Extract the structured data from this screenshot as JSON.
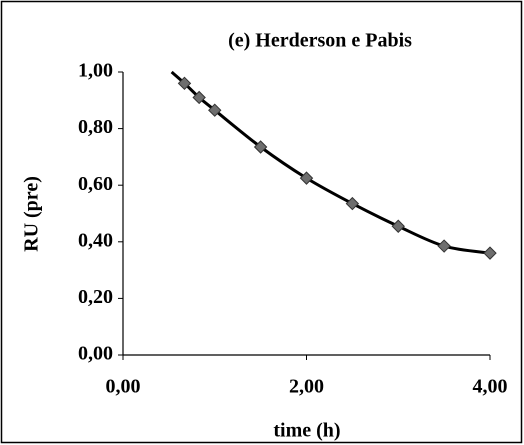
{
  "chart_data": {
    "type": "line",
    "title": "(e) Herderson e Pabis",
    "xlabel": "time (h)",
    "ylabel": "RU (pre)",
    "series": [
      {
        "style": "curve",
        "color": "#000000",
        "x": [
          0.53,
          0.67,
          0.83,
          1.0,
          1.5,
          2.0,
          2.5,
          3.0,
          3.5,
          4.0
        ],
        "values": [
          1.0,
          0.96,
          0.91,
          0.865,
          0.735,
          0.625,
          0.535,
          0.455,
          0.385,
          0.36
        ]
      },
      {
        "style": "diamond",
        "color": "#6e6e6e",
        "x": [
          0.67,
          0.83,
          1.0,
          1.5,
          2.0,
          2.5,
          3.0,
          3.5,
          4.0
        ],
        "values": [
          0.96,
          0.91,
          0.865,
          0.735,
          0.625,
          0.535,
          0.455,
          0.385,
          0.36
        ]
      }
    ],
    "xlim": [
      0,
      4
    ],
    "xticks": [
      {
        "value": 0,
        "label": "0,00"
      },
      {
        "value": 2,
        "label": "2,00"
      },
      {
        "value": 4,
        "label": "4,00"
      }
    ],
    "ylim": [
      0,
      1
    ],
    "yticks": [
      {
        "value": 0,
        "label": "0,00"
      },
      {
        "value": 0.2,
        "label": "0,20"
      },
      {
        "value": 0.4,
        "label": "0,40"
      },
      {
        "value": 0.6,
        "label": "0,60"
      },
      {
        "value": 0.8,
        "label": "0,80"
      },
      {
        "value": 1.0,
        "label": "1,00"
      }
    ],
    "grid": false
  }
}
